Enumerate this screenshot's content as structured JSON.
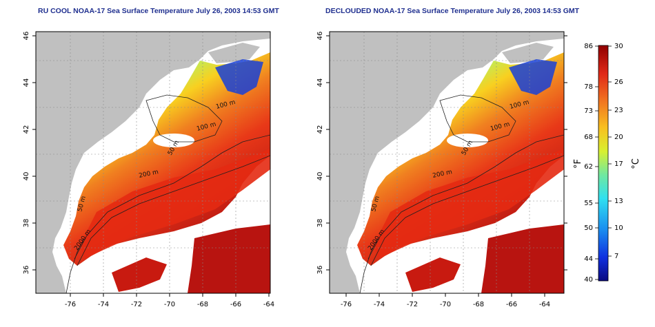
{
  "maps": [
    {
      "title": "RU COOL NOAA-17 Sea Surface Temperature July 26, 2003 14:53 GMT",
      "contour_labels": [
        "100 m",
        "100 m",
        "50 m",
        "200 m",
        "50 m",
        "2000 m"
      ]
    },
    {
      "title": "DECLOUDED NOAA-17 Sea Surface Temperature July 26, 2003 14:53 GMT",
      "contour_labels": [
        "100 m",
        "100 m",
        "50 m",
        "200 m",
        "50 m",
        "2000 m"
      ]
    }
  ],
  "lon_ticks": [
    "-76",
    "-74",
    "-72",
    "-70",
    "-68",
    "-66",
    "-64"
  ],
  "lat_ticks": [
    "36",
    "38",
    "40",
    "42",
    "44",
    "46"
  ],
  "colorbar": {
    "f_unit": "°F",
    "c_unit": "°C",
    "f_ticks": [
      "40",
      "44",
      "50",
      "55",
      "62",
      "68",
      "73",
      "78",
      "86"
    ],
    "c_ticks": [
      "7",
      "10",
      "13",
      "17",
      "20",
      "23",
      "26",
      "30"
    ]
  },
  "colors": {
    "land": "#c0c0c0",
    "cloud": "#ffffff",
    "title": "#1f2f8f"
  }
}
